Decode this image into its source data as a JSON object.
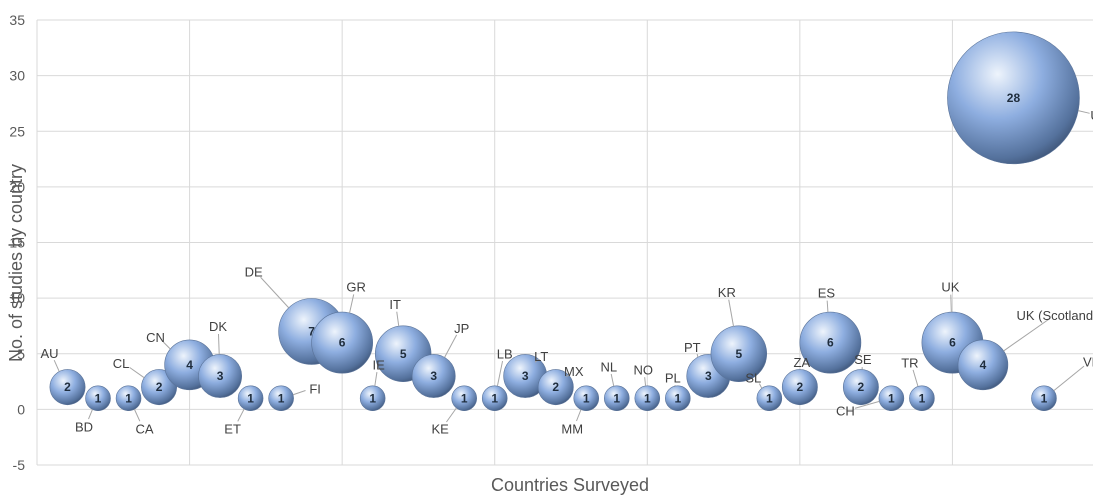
{
  "chart_data": {
    "type": "bubble",
    "title": "",
    "xlabel": "Countries Surveyed",
    "ylabel": "No. of studies by country",
    "ylim": [
      -5,
      35
    ],
    "yticks": [
      -5,
      0,
      5,
      10,
      15,
      20,
      25,
      30,
      35
    ],
    "grid": true,
    "legend": "none",
    "bubble_color": "#7f9fc8",
    "points": [
      {
        "name": "AU",
        "x": 1,
        "y": 2,
        "size": 2
      },
      {
        "name": "BD",
        "x": 2,
        "y": 1,
        "size": 1
      },
      {
        "name": "CA",
        "x": 3,
        "y": 1,
        "size": 1
      },
      {
        "name": "CL",
        "x": 4,
        "y": 2,
        "size": 2
      },
      {
        "name": "CN",
        "x": 5,
        "y": 4,
        "size": 4
      },
      {
        "name": "DK",
        "x": 6,
        "y": 3,
        "size": 3
      },
      {
        "name": "ET",
        "x": 7,
        "y": 1,
        "size": 1
      },
      {
        "name": "FI",
        "x": 8,
        "y": 1,
        "size": 1
      },
      {
        "name": "DE",
        "x": 9,
        "y": 7,
        "size": 7
      },
      {
        "name": "GR",
        "x": 10,
        "y": 6,
        "size": 6
      },
      {
        "name": "IE",
        "x": 11,
        "y": 1,
        "size": 1
      },
      {
        "name": "IT",
        "x": 12,
        "y": 5,
        "size": 5
      },
      {
        "name": "JP",
        "x": 13,
        "y": 3,
        "size": 3
      },
      {
        "name": "KE",
        "x": 14,
        "y": 1,
        "size": 1
      },
      {
        "name": "LB",
        "x": 15,
        "y": 1,
        "size": 1
      },
      {
        "name": "LT",
        "x": 16,
        "y": 3,
        "size": 3
      },
      {
        "name": "MX",
        "x": 17,
        "y": 2,
        "size": 2
      },
      {
        "name": "MM",
        "x": 18,
        "y": 1,
        "size": 1
      },
      {
        "name": "NL",
        "x": 19,
        "y": 1,
        "size": 1
      },
      {
        "name": "NO",
        "x": 20,
        "y": 1,
        "size": 1
      },
      {
        "name": "PL",
        "x": 21,
        "y": 1,
        "size": 1
      },
      {
        "name": "PT",
        "x": 22,
        "y": 3,
        "size": 3
      },
      {
        "name": "KR",
        "x": 23,
        "y": 5,
        "size": 5
      },
      {
        "name": "SL",
        "x": 24,
        "y": 1,
        "size": 1
      },
      {
        "name": "ZA",
        "x": 25,
        "y": 2,
        "size": 2
      },
      {
        "name": "ES",
        "x": 26,
        "y": 6,
        "size": 6
      },
      {
        "name": "SE",
        "x": 27,
        "y": 2,
        "size": 2
      },
      {
        "name": "CH",
        "x": 28,
        "y": 1,
        "size": 1
      },
      {
        "name": "TR",
        "x": 29,
        "y": 1,
        "size": 1
      },
      {
        "name": "UK",
        "x": 30,
        "y": 6,
        "size": 6
      },
      {
        "name": "UK (Scotland)",
        "x": 31,
        "y": 4,
        "size": 4
      },
      {
        "name": "US",
        "x": 32,
        "y": 28,
        "size": 28
      },
      {
        "name": "VN",
        "x": 33,
        "y": 1,
        "size": 1
      }
    ]
  }
}
